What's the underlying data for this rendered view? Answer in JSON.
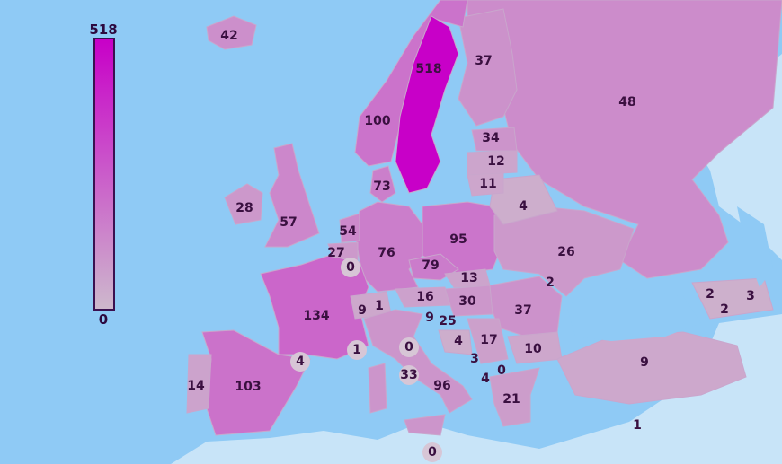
{
  "legend": {
    "max_label": "518",
    "min_label": "0",
    "color_max": "#c800c8",
    "color_min": "#cdb8cc"
  },
  "colors": {
    "sea": "#8fcaf5",
    "outside_land": "#c8e4f8",
    "label_text": "#3a1040"
  },
  "values": [
    "42",
    "518",
    "37",
    "48",
    "100",
    "34",
    "12",
    "11",
    "73",
    "4",
    "28",
    "57",
    "54",
    "95",
    "27",
    "76",
    "26",
    "0",
    "79",
    "13",
    "2",
    "2",
    "3",
    "2",
    "134",
    "9",
    "1",
    "16",
    "30",
    "37",
    "9",
    "25",
    "4",
    "17",
    "10",
    "4",
    "1",
    "0",
    "3",
    "9",
    "14",
    "103",
    "33",
    "96",
    "4",
    "0",
    "21",
    "1",
    "0"
  ]
}
